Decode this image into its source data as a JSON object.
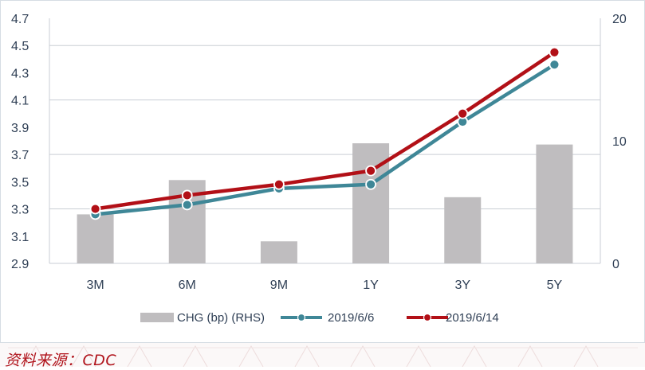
{
  "source": "资料来源：CDC",
  "colors": {
    "bar": "#bfbdbf",
    "series_a": "#3f8797",
    "series_b": "#b21017",
    "grid": "#c9ced4",
    "text": "#2f3f55",
    "source": "#b0131b"
  },
  "chart_data": {
    "type": "bar+line",
    "categories": [
      "3M",
      "6M",
      "9M",
      "1Y",
      "3Y",
      "5Y"
    ],
    "y_left": {
      "ticks": [
        "2.9",
        "3.1",
        "3.3",
        "3.5",
        "3.7",
        "3.9",
        "4.1",
        "4.3",
        "4.5",
        "4.7"
      ],
      "ylim": [
        2.9,
        4.7
      ]
    },
    "y_right": {
      "ticks": [
        "0",
        "10",
        "20"
      ],
      "ylim": [
        0,
        20
      ]
    },
    "bars": {
      "name": "CHG (bp) (RHS)",
      "axis": "right",
      "values": [
        4.0,
        6.8,
        1.8,
        9.8,
        5.4,
        9.7
      ]
    },
    "series": [
      {
        "name": "2019/6/6",
        "axis": "left",
        "values": [
          3.26,
          3.33,
          3.45,
          3.48,
          3.94,
          4.36
        ]
      },
      {
        "name": "2019/6/14",
        "axis": "left",
        "values": [
          3.3,
          3.4,
          3.48,
          3.58,
          4.0,
          4.45
        ]
      }
    ],
    "grid": true,
    "legend": "bottom"
  }
}
